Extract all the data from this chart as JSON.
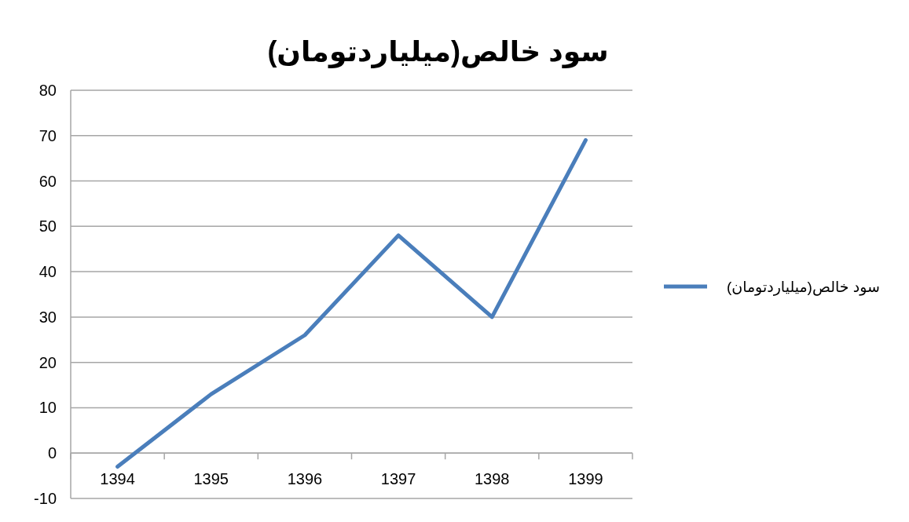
{
  "chart_data": {
    "type": "line",
    "title": "سود خالص(میلیاردتومان)",
    "categories": [
      "1394",
      "1395",
      "1396",
      "1397",
      "1398",
      "1399"
    ],
    "series": [
      {
        "name": "سود خالص(میلیاردتومان)",
        "color": "#4a7ebb",
        "values": [
          -3,
          13,
          26,
          48,
          30,
          69
        ]
      }
    ],
    "ylim": [
      -10,
      80
    ],
    "yticks": [
      -10,
      0,
      10,
      20,
      30,
      40,
      50,
      60,
      70,
      80
    ],
    "grid": "y",
    "legend": "right"
  }
}
